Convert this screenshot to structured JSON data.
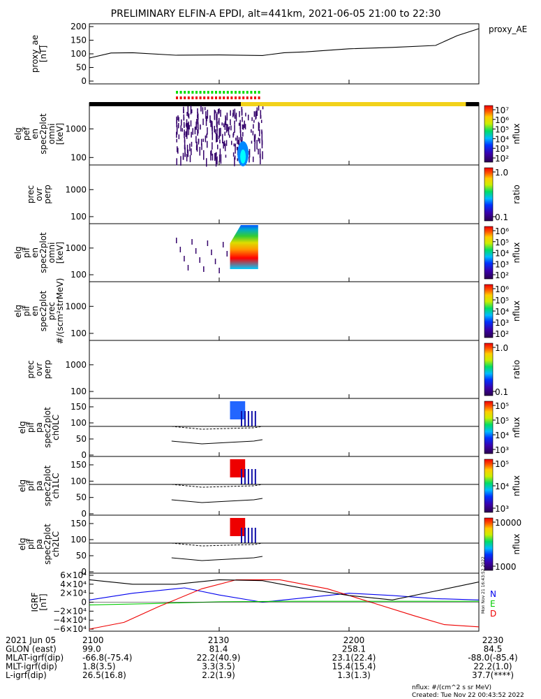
{
  "title": "PRELIMINARY ELFIN-A EPDI, alt=441km, 2021-06-05 21:00 to 22:30",
  "colors": {
    "black": "#000000",
    "yellow": "#f2d21a",
    "green": "#00dd00",
    "red": "#ee0000",
    "blue": "#0000ee",
    "purple": "#33006a"
  },
  "chart_data": {
    "type": "line",
    "time_axis": {
      "ticks": [
        "2100",
        "2130",
        "2200",
        "2230"
      ],
      "range": [
        "21:00",
        "22:30"
      ],
      "date_label": "2021 Jun 05"
    },
    "panels": [
      {
        "id": "proxy_ae",
        "ylabel": [
          "proxy_ae",
          "[nT]"
        ],
        "side_label": "proxy_AE",
        "yticks": [
          "200",
          "150",
          "100",
          "50",
          "0"
        ],
        "ylim": [
          0,
          200
        ],
        "series": [
          {
            "name": "proxy_AE",
            "x": [
              0,
              5,
              10,
              20,
              30,
              40,
              45,
              50,
              60,
              70,
              80,
              85,
              90
            ],
            "values": [
              85,
              103,
              104,
              95,
              96,
              94,
              104,
              107,
              118,
              123,
              130,
              165,
              190
            ]
          }
        ]
      },
      {
        "id": "elf_omni",
        "ylabel": [
          "elg",
          "pef",
          "en",
          "spec2plot",
          "omni",
          "[keV]"
        ],
        "yticks": [
          "1000",
          "100"
        ],
        "colorbar": {
          "labels": [
            "10⁷",
            "10⁶",
            "10⁵",
            "10⁴",
            "10³",
            "10²"
          ],
          "title": "nflux"
        }
      },
      {
        "id": "prec_ovr_perp_e",
        "ylabel": [
          "prec",
          "ovr",
          "perp"
        ],
        "yticks": [
          "1000",
          "100"
        ],
        "colorbar": {
          "labels": [
            "1.0",
            "0.1"
          ],
          "title": "ratio"
        }
      },
      {
        "id": "pif_omni",
        "ylabel": [
          "elg",
          "pif",
          "en",
          "spec2plot",
          "omni",
          "[keV]"
        ],
        "yticks": [
          "1000",
          "100"
        ],
        "colorbar": {
          "labels": [
            "10⁶",
            "10⁵",
            "10⁴",
            "10³",
            "10²"
          ],
          "title": "nflux"
        }
      },
      {
        "id": "pif_prec",
        "ylabel": [
          "elg",
          "pif",
          "en",
          "spec2plot",
          "prec",
          "#/(scm²strMeV)"
        ],
        "yticks": [
          "1000",
          "100"
        ],
        "colorbar": {
          "labels": [
            "10⁶",
            "10⁵",
            "10⁴",
            "10³",
            "10²"
          ],
          "title": "nflux"
        }
      },
      {
        "id": "prec_ovr_perp_i",
        "ylabel": [
          "prec",
          "ovr",
          "perp"
        ],
        "yticks": [
          "1000",
          "100"
        ],
        "colorbar": {
          "labels": [
            "1.0",
            "0.1"
          ],
          "title": "ratio"
        }
      },
      {
        "id": "ch0lc",
        "ylabel": [
          "elg",
          "pif",
          "pa",
          "spec2plot",
          "ch0LC"
        ],
        "yticks": [
          "150",
          "100",
          "50",
          "0"
        ],
        "colorbar": {
          "labels": [
            "10⁵",
            "10⁵",
            "10⁴",
            "10³"
          ],
          "title": "nflux"
        }
      },
      {
        "id": "ch1lc",
        "ylabel": [
          "elg",
          "pif",
          "pa",
          "spec2plot",
          "ch1LC"
        ],
        "yticks": [
          "150",
          "100",
          "50",
          "0"
        ],
        "colorbar": {
          "labels": [
            "10⁵",
            "10⁴",
            "10³"
          ],
          "title": "nflux"
        }
      },
      {
        "id": "ch2lc",
        "ylabel": [
          "elg",
          "pif",
          "pa",
          "spec2plot",
          "ch2LC"
        ],
        "yticks": [
          "150",
          "100",
          "50",
          "0"
        ],
        "colorbar": {
          "labels": [
            "10000",
            "1000"
          ],
          "title": "nflux"
        }
      },
      {
        "id": "igrf",
        "ylabel": [
          "IGRF",
          "[nT]"
        ],
        "yticks": [
          "6×10⁴",
          "4×10⁴",
          "2×10⁴",
          "0",
          "−2×10⁴",
          "−4×10⁴",
          "−6×10⁴"
        ],
        "ylim": [
          -60000,
          60000
        ],
        "series": [
          {
            "name": "N",
            "color": "#0000ee",
            "x": [
              0,
              10,
              22,
              30,
              40,
              50,
              60,
              70,
              80,
              90
            ],
            "values": [
              5000,
              20000,
              32000,
              16000,
              0,
              10000,
              20000,
              15000,
              8000,
              5000
            ]
          },
          {
            "name": "E",
            "color": "#00cc00",
            "x": [
              0,
              15,
              30,
              45,
              60,
              75,
              90
            ],
            "values": [
              -6000,
              -3000,
              1000,
              2000,
              2000,
              2000,
              2000
            ]
          },
          {
            "name": "D",
            "color": "#ee0000",
            "x": [
              0,
              8,
              16,
              26,
              34,
              44,
              55,
              65,
              75,
              82,
              90
            ],
            "values": [
              -60000,
              -45000,
              -10000,
              30000,
              50000,
              50000,
              30000,
              0,
              -30000,
              -50000,
              -55000
            ]
          },
          {
            "name": "",
            "color": "#000000",
            "x": [
              0,
              10,
              20,
              30,
              40,
              50,
              60,
              70,
              80,
              90
            ],
            "values": [
              50000,
              40000,
              40000,
              50000,
              48000,
              30000,
              15000,
              5000,
              25000,
              45000
            ]
          }
        ]
      }
    ]
  },
  "ephemeris": {
    "rows": [
      {
        "label": "2021 Jun 05",
        "values": [
          "2100",
          "2130",
          "2200",
          "2230"
        ]
      },
      {
        "label": "GLON (east)",
        "values": [
          "99.0",
          "81.4",
          "258.1",
          "84.5"
        ]
      },
      {
        "label": "MLAT-igrf(dip)",
        "values": [
          "-66.8(-75.4)",
          "22.2(40.9)",
          "23.1(22.4)",
          "-88.0(-85.4)"
        ]
      },
      {
        "label": "MLT-igrf(dip)",
        "values": [
          "1.8(3.5)",
          "3.3(3.5)",
          "15.4(15.4)",
          "22.2(1.0)"
        ]
      },
      {
        "label": "L-igrf(dip)",
        "values": [
          "26.5(16.8)",
          "2.2(1.9)",
          "1.3(1.3)",
          "37.7(****)"
        ]
      }
    ]
  },
  "footer": {
    "units": "nflux: #/(cm^2 s sr MeV)",
    "created": "Created: Tue Nov 22 00:43:52 2022",
    "side_stamp": "Mon Nov 21 16:43:52 2022"
  }
}
